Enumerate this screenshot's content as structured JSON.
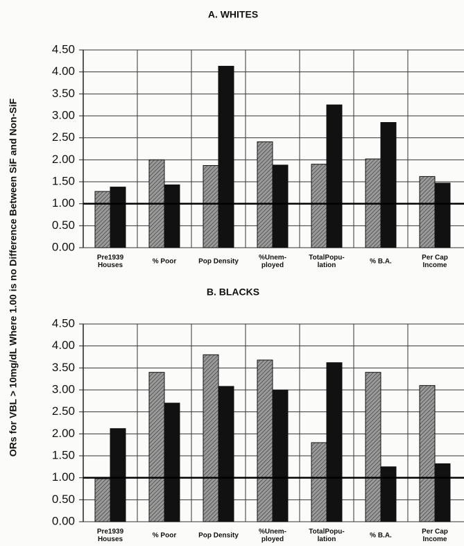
{
  "ylabel": "ORs for VBL > 10mg/dL Where 1.00 is no Difference Between SiF and Non-SiF",
  "chart_data": [
    {
      "type": "bar",
      "title": "A. WHITES",
      "categories": [
        "Pre1939\nHouses",
        "% Poor",
        "Pop Density",
        "%Unem-\nployed",
        "TotalPopu-\nlation",
        "% B.A.",
        "Per Cap\nIncome"
      ],
      "series": [
        {
          "color": "#8a8a8a",
          "values": [
            1.28,
            2.0,
            1.87,
            2.41,
            1.9,
            2.02,
            1.62
          ]
        },
        {
          "color": "#111111",
          "values": [
            1.38,
            1.43,
            4.13,
            1.88,
            3.25,
            2.85,
            1.47
          ]
        }
      ],
      "ylim": [
        0,
        4.5
      ],
      "yticks": [
        {
          "value": 0,
          "label": "0.00"
        },
        {
          "value": 0.5,
          "label": "0.50"
        },
        {
          "value": 1,
          "label": "1.00"
        },
        {
          "value": 1.5,
          "label": "1.50"
        },
        {
          "value": 2,
          "label": "2.00"
        },
        {
          "value": 2.5,
          "label": "2.50"
        },
        {
          "value": 3,
          "label": "3.00"
        },
        {
          "value": 3.5,
          "label": "3.50"
        },
        {
          "value": 4,
          "label": "4.00"
        },
        {
          "value": 4.5,
          "label": "4.50"
        }
      ],
      "reference_line": 1,
      "grid": true
    },
    {
      "type": "bar",
      "title": "B. BLACKS",
      "categories": [
        "Pre1939\nHouses",
        "% Poor",
        "Pop Density",
        "%Unem-\nployed",
        "TotalPopu-\nlation",
        "% B.A.",
        "Per Cap\nIncome"
      ],
      "series": [
        {
          "color": "#8a8a8a",
          "values": [
            0.98,
            3.4,
            3.8,
            3.68,
            1.8,
            3.4,
            3.1
          ]
        },
        {
          "color": "#111111",
          "values": [
            2.12,
            2.7,
            3.08,
            3.0,
            3.62,
            1.25,
            1.32
          ]
        }
      ],
      "ylim": [
        0,
        4.5
      ],
      "yticks": [
        {
          "value": 0,
          "label": "0.00"
        },
        {
          "value": 0.5,
          "label": "0.50"
        },
        {
          "value": 1,
          "label": "1.00"
        },
        {
          "value": 1.5,
          "label": "1.50"
        },
        {
          "value": 2,
          "label": "2.00"
        },
        {
          "value": 2.5,
          "label": "2.50"
        },
        {
          "value": 3,
          "label": "3.00"
        },
        {
          "value": 3.5,
          "label": "3.50"
        },
        {
          "value": 4,
          "label": "4.00"
        },
        {
          "value": 4.5,
          "label": "4.50"
        }
      ],
      "reference_line": 1,
      "grid": true
    }
  ]
}
